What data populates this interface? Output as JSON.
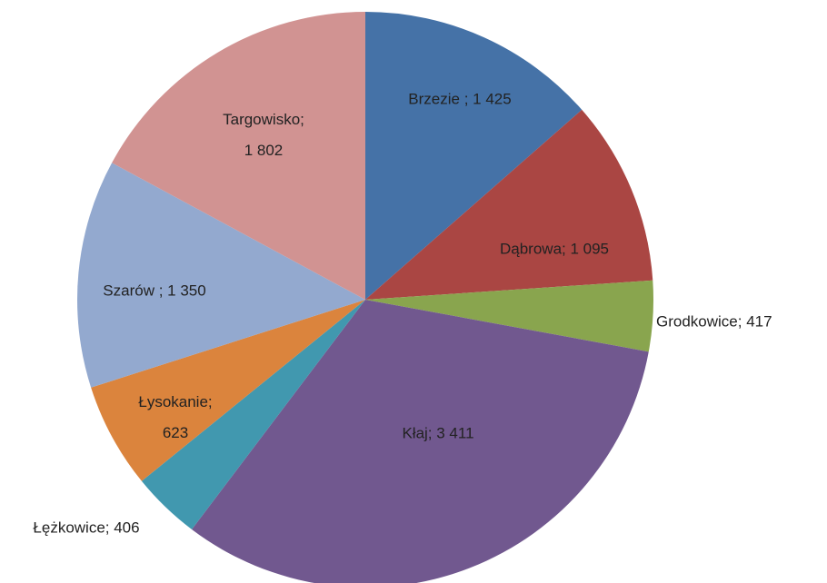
{
  "chart_data": {
    "type": "pie",
    "values": [
      1425,
      1095,
      417,
      3411,
      406,
      623,
      1350,
      1802
    ],
    "value_labels": [
      "Brzezie ; 1 425",
      "Dąbrowa; 1 095",
      "Grodkowice; 417",
      "Kłaj; 3 411",
      "Łężkowice; 406",
      "Łysokanie; 623",
      "Szarów ; 1 350",
      "Targowisko; 1 802"
    ],
    "colors": [
      "#4572a7",
      "#aa4643",
      "#89a54e",
      "#71588f",
      "#4198af",
      "#db843d",
      "#93a9cf",
      "#d19392"
    ]
  }
}
